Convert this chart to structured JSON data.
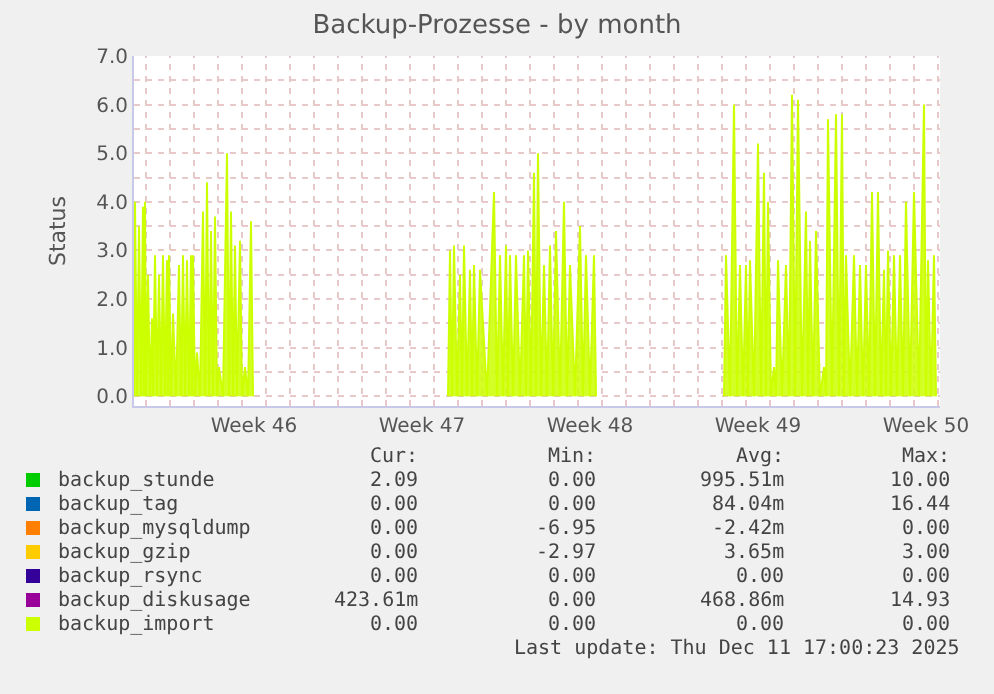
{
  "chart_data": {
    "type": "area",
    "title": "Backup-Prozesse - by month",
    "ylabel": "Status",
    "xlim": [
      "2025-11-08T12:00",
      "2025-12-12T02:00"
    ],
    "ylim": [
      -0.2,
      7.0
    ],
    "yticks": [
      {
        "value": 0,
        "label": "0.0"
      },
      {
        "value": 0.5,
        "label": null
      },
      {
        "value": 1,
        "label": "1.0"
      },
      {
        "value": 1.5,
        "label": null
      },
      {
        "value": 2,
        "label": "2.0"
      },
      {
        "value": 2.5,
        "label": null
      },
      {
        "value": 3,
        "label": "3.0"
      },
      {
        "value": 3.5,
        "label": null
      },
      {
        "value": 4,
        "label": "4.0"
      },
      {
        "value": 4.5,
        "label": null
      },
      {
        "value": 5,
        "label": "5.0"
      },
      {
        "value": 5.5,
        "label": null
      },
      {
        "value": 6,
        "label": "6.0"
      },
      {
        "value": 6.5,
        "label": null
      },
      {
        "value": 7,
        "label": "7.0"
      }
    ],
    "xticks": [
      {
        "value": "2025-11-09",
        "label": null
      },
      {
        "value": "2025-11-10",
        "label": null
      },
      {
        "value": "2025-11-11",
        "label": null
      },
      {
        "value": "2025-11-12",
        "label": null
      },
      {
        "value": "2025-11-13",
        "label": null
      },
      {
        "value": "2025-11-13T12:00",
        "label": "Week 46"
      },
      {
        "value": "2025-11-14",
        "label": null
      },
      {
        "value": "2025-11-15",
        "label": null
      },
      {
        "value": "2025-11-16",
        "label": null
      },
      {
        "value": "2025-11-17",
        "label": null
      },
      {
        "value": "2025-11-18",
        "label": null
      },
      {
        "value": "2025-11-19",
        "label": null
      },
      {
        "value": "2025-11-20",
        "label": null
      },
      {
        "value": "2025-11-20T12:00",
        "label": "Week 47"
      },
      {
        "value": "2025-11-21",
        "label": null
      },
      {
        "value": "2025-11-22",
        "label": null
      },
      {
        "value": "2025-11-23",
        "label": null
      },
      {
        "value": "2025-11-24",
        "label": null
      },
      {
        "value": "2025-11-25",
        "label": null
      },
      {
        "value": "2025-11-26",
        "label": null
      },
      {
        "value": "2025-11-27",
        "label": null
      },
      {
        "value": "2025-11-27T12:00",
        "label": "Week 48"
      },
      {
        "value": "2025-11-28",
        "label": null
      },
      {
        "value": "2025-11-29",
        "label": null
      },
      {
        "value": "2025-11-30",
        "label": null
      },
      {
        "value": "2025-12-01",
        "label": null
      },
      {
        "value": "2025-12-02",
        "label": null
      },
      {
        "value": "2025-12-03",
        "label": null
      },
      {
        "value": "2025-12-04",
        "label": null
      },
      {
        "value": "2025-12-04T12:00",
        "label": "Week 49"
      },
      {
        "value": "2025-12-05",
        "label": null
      },
      {
        "value": "2025-12-06",
        "label": null
      },
      {
        "value": "2025-12-07",
        "label": null
      },
      {
        "value": "2025-12-08",
        "label": null
      },
      {
        "value": "2025-12-09",
        "label": null
      },
      {
        "value": "2025-12-10",
        "label": null
      },
      {
        "value": "2025-12-11",
        "label": null
      },
      {
        "value": "2025-12-11T12:00",
        "label": "Week 50"
      },
      {
        "value": "2025-12-12",
        "label": null
      }
    ],
    "grid": true,
    "legend": "bottom",
    "series": [
      {
        "name": "backup_stunde",
        "color": "#00cc00"
      },
      {
        "name": "backup_tag",
        "color": "#0066b3"
      },
      {
        "name": "backup_mysqldump",
        "color": "#ff8000"
      },
      {
        "name": "backup_gzip",
        "color": "#ffcc00"
      },
      {
        "name": "backup_rsync",
        "color": "#330099"
      },
      {
        "name": "backup_diskusage",
        "color": "#990099"
      },
      {
        "name": "backup_import",
        "color": "#ccff00",
        "x": [
          "2025-11-08T12:00",
          "2025-11-08T13:00",
          "2025-11-08T15:00",
          "2025-11-08T17:00",
          "2025-11-08T19:00",
          "2025-11-08T21:00",
          "2025-11-08T22:00",
          "2025-11-08T23:00",
          "2025-11-09T00:00",
          "2025-11-09T02:00",
          "2025-11-09T04:00",
          "2025-11-09T06:00",
          "2025-11-09T07:00",
          "2025-11-09T09:00",
          "2025-11-09T11:00",
          "2025-11-09T13:00",
          "2025-11-09T15:00",
          "2025-11-09T17:00",
          "2025-11-09T19:00",
          "2025-11-09T21:00",
          "2025-11-09T22:00",
          "2025-11-09T23:00",
          "2025-11-10T01:00",
          "2025-11-10T03:00",
          "2025-11-10T06:00",
          "2025-11-10T09:00",
          "2025-11-10T11:00",
          "2025-11-10T13:00",
          "2025-11-10T15:00",
          "2025-11-10T17:00",
          "2025-11-10T19:00",
          "2025-11-10T21:00",
          "2025-11-10T22:00",
          "2025-11-10T23:00",
          "2025-11-11T01:00",
          "2025-11-11T03:00",
          "2025-11-11T06:00",
          "2025-11-11T09:00",
          "2025-11-11T11:00",
          "2025-11-11T13:00",
          "2025-11-11T15:00",
          "2025-11-11T17:00",
          "2025-11-11T19:00",
          "2025-11-11T21:00",
          "2025-11-11T23:00",
          "2025-11-12T01:00",
          "2025-11-12T05:00",
          "2025-11-12T09:00",
          "2025-11-12T11:00",
          "2025-11-12T13:00",
          "2025-11-12T15:00",
          "2025-11-12T17:00",
          "2025-11-12T19:00",
          "2025-11-12T22:00",
          "2025-11-13T00:00",
          "2025-11-13T03:00",
          "2025-11-13T06:00",
          "2025-11-13T09:00",
          "2025-11-13T11:00",
          "2025-11-17T00:00",
          "2025-11-21T14:00",
          "2025-11-21T16:00",
          "2025-11-21T18:00",
          "2025-11-21T20:00",
          "2025-11-21T23:00",
          "2025-11-22T02:00",
          "2025-11-22T04:00",
          "2025-11-22T06:00",
          "2025-11-22T09:00",
          "2025-11-22T12:00",
          "2025-11-22T14:00",
          "2025-11-22T16:00",
          "2025-11-22T19:00",
          "2025-11-22T22:00",
          "2025-11-23T05:00",
          "2025-11-23T12:00",
          "2025-11-23T15:00",
          "2025-11-23T18:00",
          "2025-11-23T21:00",
          "2025-11-24T00:00",
          "2025-11-24T02:00",
          "2025-11-24T04:00",
          "2025-11-24T07:00",
          "2025-11-24T10:00",
          "2025-11-24T14:00",
          "2025-11-24T18:00",
          "2025-11-24T20:00",
          "2025-11-24T22:00",
          "2025-11-25T01:00",
          "2025-11-25T04:00",
          "2025-11-25T06:00",
          "2025-11-25T08:00",
          "2025-11-25T11:00",
          "2025-11-25T14:00",
          "2025-11-25T17:00",
          "2025-11-25T20:00",
          "2025-11-25T23:00",
          "2025-11-26T02:00",
          "2025-11-26T06:00",
          "2025-11-26T10:00",
          "2025-11-26T13:00",
          "2025-11-26T16:00",
          "2025-11-26T21:00",
          "2025-11-27T02:00",
          "2025-11-27T05:00",
          "2025-11-27T08:00",
          "2025-11-27T12:00",
          "2025-11-27T16:00",
          "2025-11-27T18:00",
          "2025-11-30T00:00",
          "2025-12-03T02:00",
          "2025-12-03T04:00",
          "2025-12-03T08:00",
          "2025-12-03T12:00",
          "2025-12-03T15:00",
          "2025-12-03T18:00",
          "2025-12-03T21:00",
          "2025-12-04T00:00",
          "2025-12-04T02:00",
          "2025-12-04T04:00",
          "2025-12-04T08:00",
          "2025-12-04T12:00",
          "2025-12-04T15:00",
          "2025-12-04T18:00",
          "2025-12-04T20:00",
          "2025-12-04T22:00",
          "2025-12-05T01:00",
          "2025-12-05T04:00",
          "2025-12-05T06:00",
          "2025-12-05T08:00",
          "2025-12-05T12:00",
          "2025-12-05T16:00",
          "2025-12-05T19:00",
          "2025-12-05T22:00",
          "2025-12-06T01:00",
          "2025-12-06T04:00",
          "2025-12-06T08:00",
          "2025-12-06T12:00",
          "2025-12-06T14:00",
          "2025-12-06T16:00",
          "2025-12-06T19:00",
          "2025-12-06T22:00",
          "2025-12-07T02:00",
          "2025-12-07T06:00",
          "2025-12-07T08:00",
          "2025-12-07T10:00",
          "2025-12-07T14:00",
          "2025-12-07T18:00",
          "2025-12-07T21:00",
          "2025-12-08T00:00",
          "2025-12-08T02:00",
          "2025-12-08T04:00",
          "2025-12-08T08:00",
          "2025-12-08T12:00",
          "2025-12-08T15:00",
          "2025-12-08T18:00",
          "2025-12-08T21:00",
          "2025-12-09T00:00",
          "2025-12-09T03:00",
          "2025-12-09T06:00",
          "2025-12-09T09:00",
          "2025-12-09T12:00",
          "2025-12-09T15:00",
          "2025-12-09T18:00",
          "2025-12-09T20:00",
          "2025-12-09T22:00",
          "2025-12-10T01:00",
          "2025-12-10T04:00",
          "2025-12-10T07:00",
          "2025-12-10T10:00",
          "2025-12-10T13:00",
          "2025-12-10T16:00",
          "2025-12-10T20:00",
          "2025-12-11T00:00",
          "2025-12-11T05:00",
          "2025-12-11T10:00",
          "2025-12-11T12:00",
          "2025-12-11T14:00",
          "2025-12-11T17:00",
          "2025-12-11T20:00",
          "2025-12-11T22:00"
        ],
        "values": [
          0,
          4.0,
          0,
          3.5,
          0,
          3.9,
          0,
          4.0,
          0,
          2.5,
          0,
          1.6,
          0,
          2.9,
          0,
          2.5,
          0,
          2.9,
          0,
          2.8,
          0,
          2.9,
          0,
          1.7,
          0,
          2.7,
          0,
          2.9,
          0,
          2.8,
          0,
          2.9,
          0,
          2.9,
          0,
          0.9,
          0,
          3.8,
          0,
          4.4,
          0,
          3.4,
          0,
          3.7,
          0,
          0.6,
          0,
          5.0,
          0,
          3.8,
          0,
          3.1,
          0,
          3.2,
          0,
          0.6,
          0,
          3.6,
          0,
          null,
          0,
          3.0,
          0,
          3.1,
          0,
          2.5,
          0,
          3.1,
          0,
          2.6,
          0,
          2.7,
          0,
          2.6,
          0,
          4.2,
          0,
          2.9,
          0,
          3.1,
          0,
          2.9,
          0,
          2.9,
          0,
          2.9,
          0,
          3.0,
          0,
          4.6,
          0,
          5.0,
          0,
          2.7,
          0,
          3.1,
          0,
          3.4,
          0,
          4.0,
          0,
          2.7,
          0,
          3.5,
          0,
          2.9,
          0,
          2.9,
          0,
          null,
          0,
          2.9,
          0,
          6.0,
          0,
          2.7,
          0,
          2.7,
          0,
          2.8,
          0,
          5.2,
          0,
          4.6,
          0,
          4.0,
          0,
          0.6,
          0,
          2.8,
          0,
          2.7,
          0,
          6.2,
          0,
          6.1,
          0,
          3.8,
          0,
          3.2,
          0,
          3.4,
          0,
          0.6,
          0,
          5.7,
          0,
          5.8,
          0,
          5.8,
          0,
          2.9,
          0,
          2.9,
          0,
          2.7,
          0,
          2.7,
          0,
          4.2,
          0,
          4.2,
          0,
          2.6,
          0,
          3.0,
          0,
          2.9,
          0,
          2.9,
          0,
          4.0,
          0,
          4.2,
          0,
          6.0,
          0,
          2.8,
          0,
          2.9,
          0
        ]
      }
    ],
    "annotations": [
      "Cur:",
      "Min:",
      "Avg:",
      "Max:",
      "2.09",
      "0.00",
      "995.51m",
      "10.00",
      "0.00",
      "0.00",
      "84.04m",
      "16.44",
      "0.00",
      "-6.95",
      "-2.42m",
      "0.00",
      "0.00",
      "-2.97",
      "3.65m",
      "3.00",
      "0.00",
      "0.00",
      "0.00",
      "0.00",
      "423.61m",
      "0.00",
      "468.86m",
      "14.93",
      "0.00",
      "0.00",
      "0.00",
      "0.00",
      "Last update: Thu Dec 11 17:00:23 2025"
    ]
  }
}
